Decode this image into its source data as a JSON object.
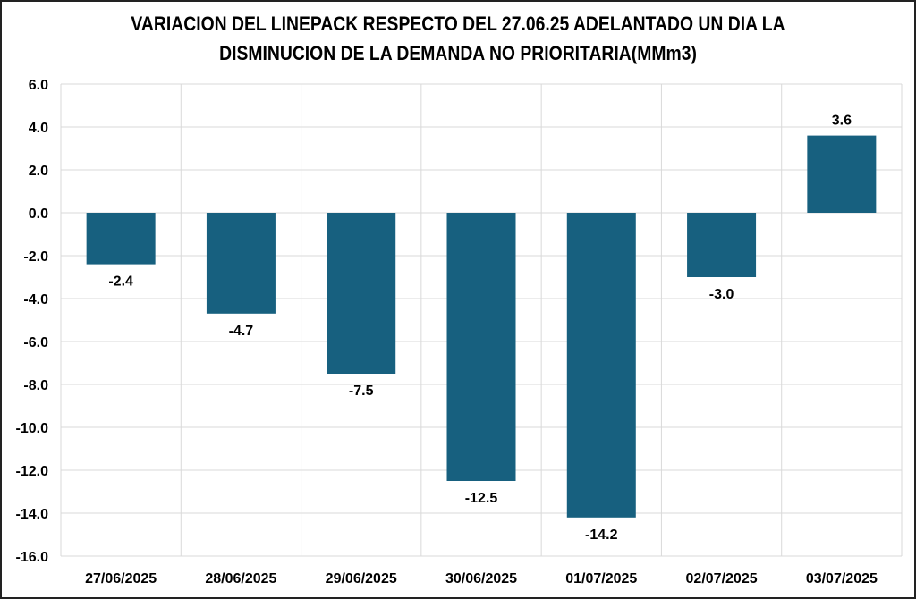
{
  "chart_data": {
    "type": "bar",
    "title_lines": [
      "VARIACION DEL LINEPACK RESPECTO DEL 27.06.25 ADELANTADO UN DIA LA",
      "DISMINUCION DE LA DEMANDA NO PRIORITARIA(MMm3)"
    ],
    "categories": [
      "27/06/2025",
      "28/06/2025",
      "29/06/2025",
      "30/06/2025",
      "01/07/2025",
      "02/07/2025",
      "03/07/2025"
    ],
    "values": [
      -2.4,
      -4.7,
      -7.5,
      -12.5,
      -14.2,
      -3.0,
      3.6
    ],
    "data_labels": [
      "-2.4",
      "-4.7",
      "-7.5",
      "-12.5",
      "-14.2",
      "-3.0",
      "3.6"
    ],
    "yticks": [
      "6.0",
      "4.0",
      "2.0",
      "0.0",
      "-2.0",
      "-4.0",
      "-6.0",
      "-8.0",
      "-10.0",
      "-12.0",
      "-14.0",
      "-16.0"
    ],
    "ylim": [
      -16,
      6
    ],
    "ytick_step": 2,
    "xlabel": "",
    "ylabel": "",
    "grid": true,
    "legend": "none",
    "colors": {
      "bar": "#17607f",
      "grid": "#d9d9d9",
      "border": "#222222"
    }
  }
}
